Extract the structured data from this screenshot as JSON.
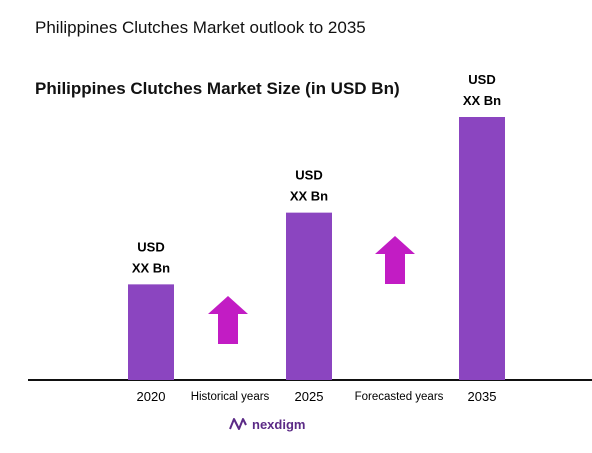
{
  "page": {
    "title": "Philippines Clutches Market outlook to 2035",
    "subtitle": "Philippines Clutches Market Size (in USD Bn)",
    "brand": "nexdigm"
  },
  "chart_data": {
    "type": "bar",
    "categories": [
      "2020",
      "2025",
      "2035"
    ],
    "values": [
      1.0,
      1.75,
      2.75
    ],
    "value_labels": [
      [
        "USD",
        "XX Bn"
      ],
      [
        "USD",
        "XX Bn"
      ],
      [
        "USD",
        "XX Bn"
      ]
    ],
    "period_labels": [
      "Historical years",
      "Forecasted years"
    ],
    "ylim": [
      0,
      2.75
    ],
    "grid": false,
    "colors": {
      "bar": "#8b45c0",
      "arrow": "#c21cc4",
      "axis": "#111111"
    }
  }
}
